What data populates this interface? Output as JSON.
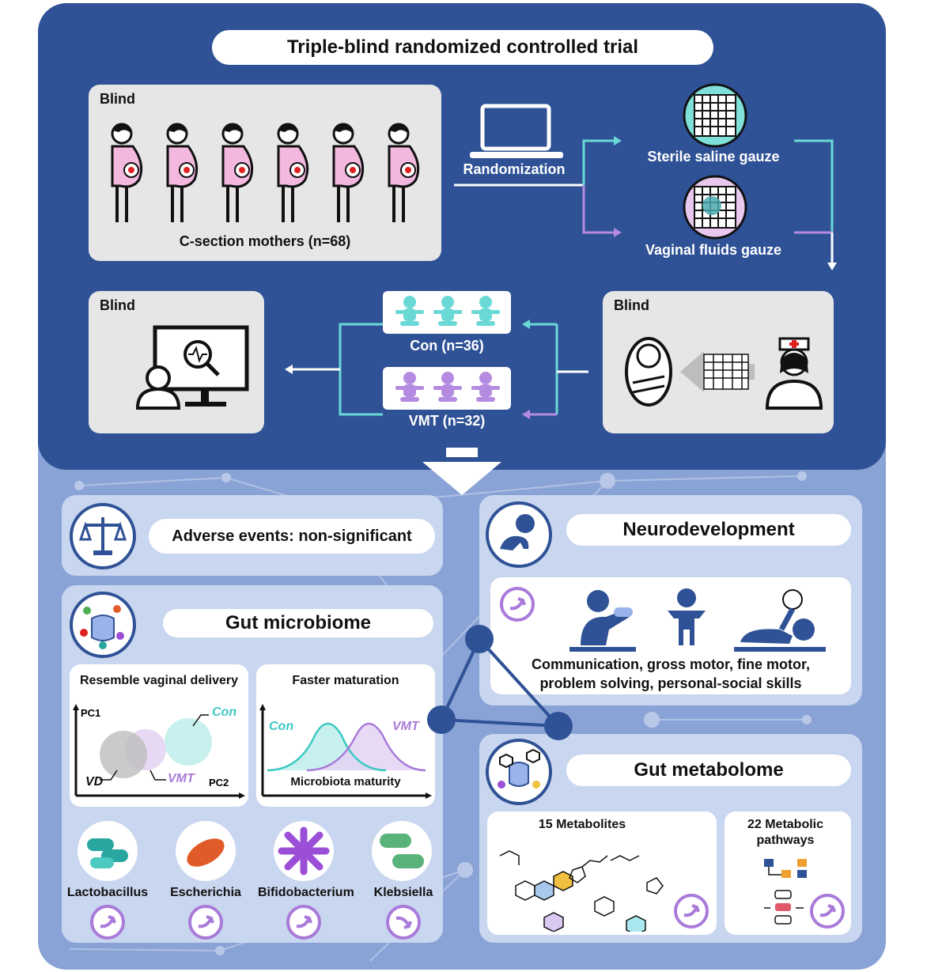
{
  "title": "Triple-blind randomized controlled trial",
  "top": {
    "blind_label": "Blind",
    "mothers_caption": "C-section mothers (n=68)",
    "randomization": "Randomization",
    "sterile": "Sterile saline gauze",
    "vaginal": "Vaginal fluids gauze",
    "con_group": "Con (n=36)",
    "vmt_group": "VMT (n=32)"
  },
  "adverse": "Adverse events: non-significant",
  "neuro": {
    "title": "Neurodevelopment",
    "skills_line1": "Communication, gross motor, fine motor,",
    "skills_line2": "problem solving,  personal-social skills"
  },
  "gut_microbiome": {
    "title": "Gut microbiome",
    "resemble": "Resemble vaginal delivery",
    "faster": "Faster maturation",
    "pc1": "PC1",
    "pc2": "PC2",
    "con": "Con",
    "vmt": "VMT",
    "vd": "VD",
    "maturity": "Microbiota maturity",
    "bacteria": [
      "Lactobacillus",
      "Escherichia",
      "Bifidobacterium",
      "Klebsiella"
    ]
  },
  "gut_metabolome": {
    "title": "Gut metabolome",
    "metabolites": "15 Metabolites",
    "pathways_line1": "22 Metabolic",
    "pathways_line2": "pathways"
  },
  "colors": {
    "navy": "#2f5296",
    "light_blue": "#8aa3d6",
    "teal": "#6ad9d5",
    "purple": "#b48be0",
    "pink": "#f0b8de"
  },
  "icons": [
    "laptop-icon",
    "pregnant-mother-icon",
    "gauze-icon",
    "baby-icon",
    "newborn-icon",
    "nurse-icon",
    "monitor-analysis-icon",
    "scale-icon",
    "brain-baby-icon",
    "microbes-icon",
    "molecule-icon",
    "up-arrow-icon",
    "down-arrow-icon"
  ]
}
